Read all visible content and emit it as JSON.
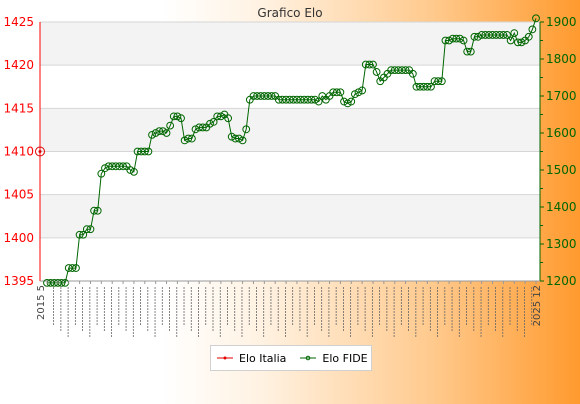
{
  "chart_data": {
    "type": "line",
    "title": "Grafico Elo",
    "legend": {
      "placement": "bottom-center"
    },
    "grid": true,
    "y_left": {
      "ticks": [
        1395,
        1400,
        1405,
        1410,
        1415,
        1420,
        1425
      ],
      "ylim": [
        1395,
        1425
      ],
      "color": "#ff0000"
    },
    "y_right": {
      "ticks": [
        1200,
        1300,
        1400,
        1500,
        1600,
        1700,
        1800,
        1900
      ],
      "ylim": [
        1200,
        1900
      ],
      "color": "#006600"
    },
    "x_tick_labels_sample": [
      "2015 5",
      "2025 12"
    ],
    "series": [
      {
        "name": "Elo Italia",
        "color": "#e00000",
        "axis": "left",
        "values": [
          1410
        ]
      },
      {
        "name": "Elo FIDE",
        "color": "#006600",
        "axis": "right",
        "values": [
          1195,
          1195,
          1195,
          1195,
          1195,
          1195,
          1235,
          1235,
          1235,
          1325,
          1325,
          1340,
          1340,
          1390,
          1390,
          1490,
          1505,
          1510,
          1510,
          1510,
          1510,
          1510,
          1510,
          1500,
          1495,
          1550,
          1550,
          1550,
          1550,
          1595,
          1600,
          1605,
          1605,
          1600,
          1620,
          1645,
          1645,
          1640,
          1580,
          1585,
          1585,
          1610,
          1615,
          1615,
          1615,
          1625,
          1630,
          1645,
          1645,
          1650,
          1640,
          1590,
          1585,
          1585,
          1580,
          1610,
          1690,
          1700,
          1700,
          1700,
          1700,
          1700,
          1700,
          1700,
          1690,
          1690,
          1690,
          1690,
          1690,
          1690,
          1690,
          1690,
          1690,
          1690,
          1690,
          1685,
          1700,
          1690,
          1700,
          1710,
          1710,
          1710,
          1685,
          1680,
          1685,
          1705,
          1710,
          1715,
          1785,
          1785,
          1785,
          1765,
          1740,
          1750,
          1760,
          1770,
          1770,
          1770,
          1770,
          1770,
          1770,
          1760,
          1725,
          1725,
          1725,
          1725,
          1725,
          1740,
          1740,
          1740,
          1850,
          1850,
          1855,
          1855,
          1855,
          1850,
          1820,
          1820,
          1860,
          1860,
          1865,
          1865,
          1865,
          1865,
          1865,
          1865,
          1865,
          1865,
          1850,
          1870,
          1845,
          1845,
          1850,
          1860,
          1880,
          1910
        ]
      }
    ]
  }
}
